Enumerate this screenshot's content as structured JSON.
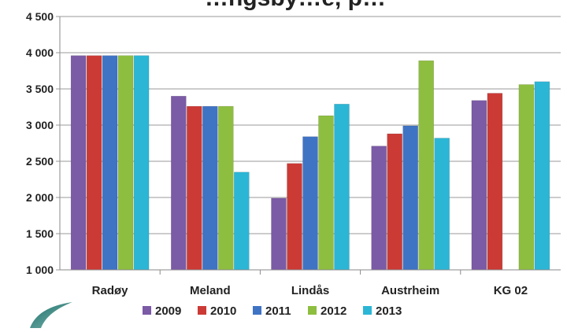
{
  "chart_data": {
    "type": "bar",
    "title": "…ngsby…e, p…",
    "categories": [
      "Radøy",
      "Meland",
      "Lindås",
      "Austrheim",
      "KG 02"
    ],
    "series": [
      {
        "name": "2009",
        "color": "#7b5aa6",
        "values": [
          3960,
          3400,
          1990,
          2710,
          3340
        ]
      },
      {
        "name": "2010",
        "color": "#cc3a36",
        "values": [
          3960,
          3260,
          2470,
          2880,
          3440
        ]
      },
      {
        "name": "2011",
        "color": "#3f73c4",
        "values": [
          3960,
          3260,
          2840,
          2990,
          null
        ]
      },
      {
        "name": "2012",
        "color": "#8ebe3f",
        "values": [
          3960,
          3260,
          3130,
          3890,
          3560
        ]
      },
      {
        "name": "2013",
        "color": "#2bb6d6",
        "values": [
          3960,
          2350,
          3290,
          2820,
          3600
        ]
      }
    ],
    "yticks": [
      "1 000",
      "1 500",
      "2 000",
      "2 500",
      "3 000",
      "3 500",
      "4 000",
      "4 500"
    ],
    "ylim": [
      1000,
      4500
    ],
    "grid": true,
    "legend": "bottom"
  },
  "logo": {
    "icon": "leaf-swoosh-logo"
  }
}
